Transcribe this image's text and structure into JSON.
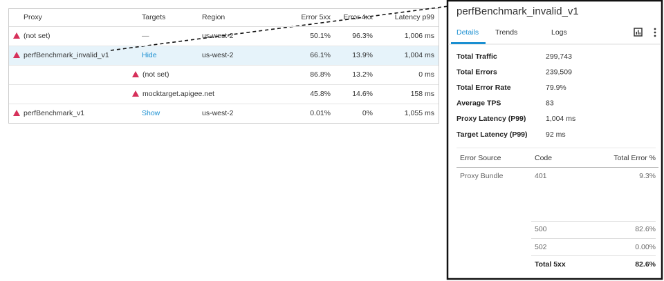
{
  "table": {
    "headers": [
      "Proxy",
      "Targets",
      "Region",
      "Error 5xx",
      "Error 4xx",
      "Latency p99"
    ],
    "rows": [
      {
        "proxy": "(not set)",
        "targets": "—",
        "region": "us-west-2",
        "error_5xx": "50.1%",
        "error_4xx": "96.3%",
        "latency": "1,006 ms"
      },
      {
        "proxy": "perfBenchmark_invalid_v1",
        "action": "Hide",
        "region": "us-west-2",
        "error_5xx": "66.1%",
        "error_4xx": "13.9%",
        "latency": "1,004 ms"
      },
      {
        "target": "(not set)",
        "error_5xx": "86.8%",
        "error_4xx": "13.2%",
        "latency": "0 ms"
      },
      {
        "target": "mocktarget.apigee.net",
        "error_5xx": "45.8%",
        "error_4xx": "14.6%",
        "latency": "158 ms"
      },
      {
        "proxy": "perfBenchmark_v1",
        "action": "Show",
        "region": "us-west-2",
        "error_5xx": "0.01%",
        "error_4xx": "0%",
        "latency": "1,055 ms"
      }
    ]
  },
  "panel": {
    "title": "perfBenchmark_invalid_v1",
    "tabs": [
      "Details",
      "Trends",
      "Logs"
    ],
    "metrics": [
      {
        "label": "Total Traffic",
        "value": "299,743"
      },
      {
        "label": "Total Errors",
        "value": "239,509"
      },
      {
        "label": "Total Error Rate",
        "value": "79.9%"
      },
      {
        "label": "Average TPS",
        "value": "83"
      },
      {
        "label": "Proxy Latency (P99)",
        "value": "1,004 ms"
      },
      {
        "label": "Target Latency (P99)",
        "value": "92 ms"
      }
    ],
    "error_table": {
      "headers": [
        "Error Source",
        "Code",
        "Total Error %"
      ],
      "rows": [
        {
          "source": "Proxy Bundle",
          "code": "401",
          "total": "9.3%"
        },
        {
          "code": "500",
          "total": "82.6%"
        },
        {
          "code": "502",
          "total": "0.00%"
        },
        {
          "code": "Total 5xx",
          "total": "82.6%"
        }
      ]
    }
  }
}
